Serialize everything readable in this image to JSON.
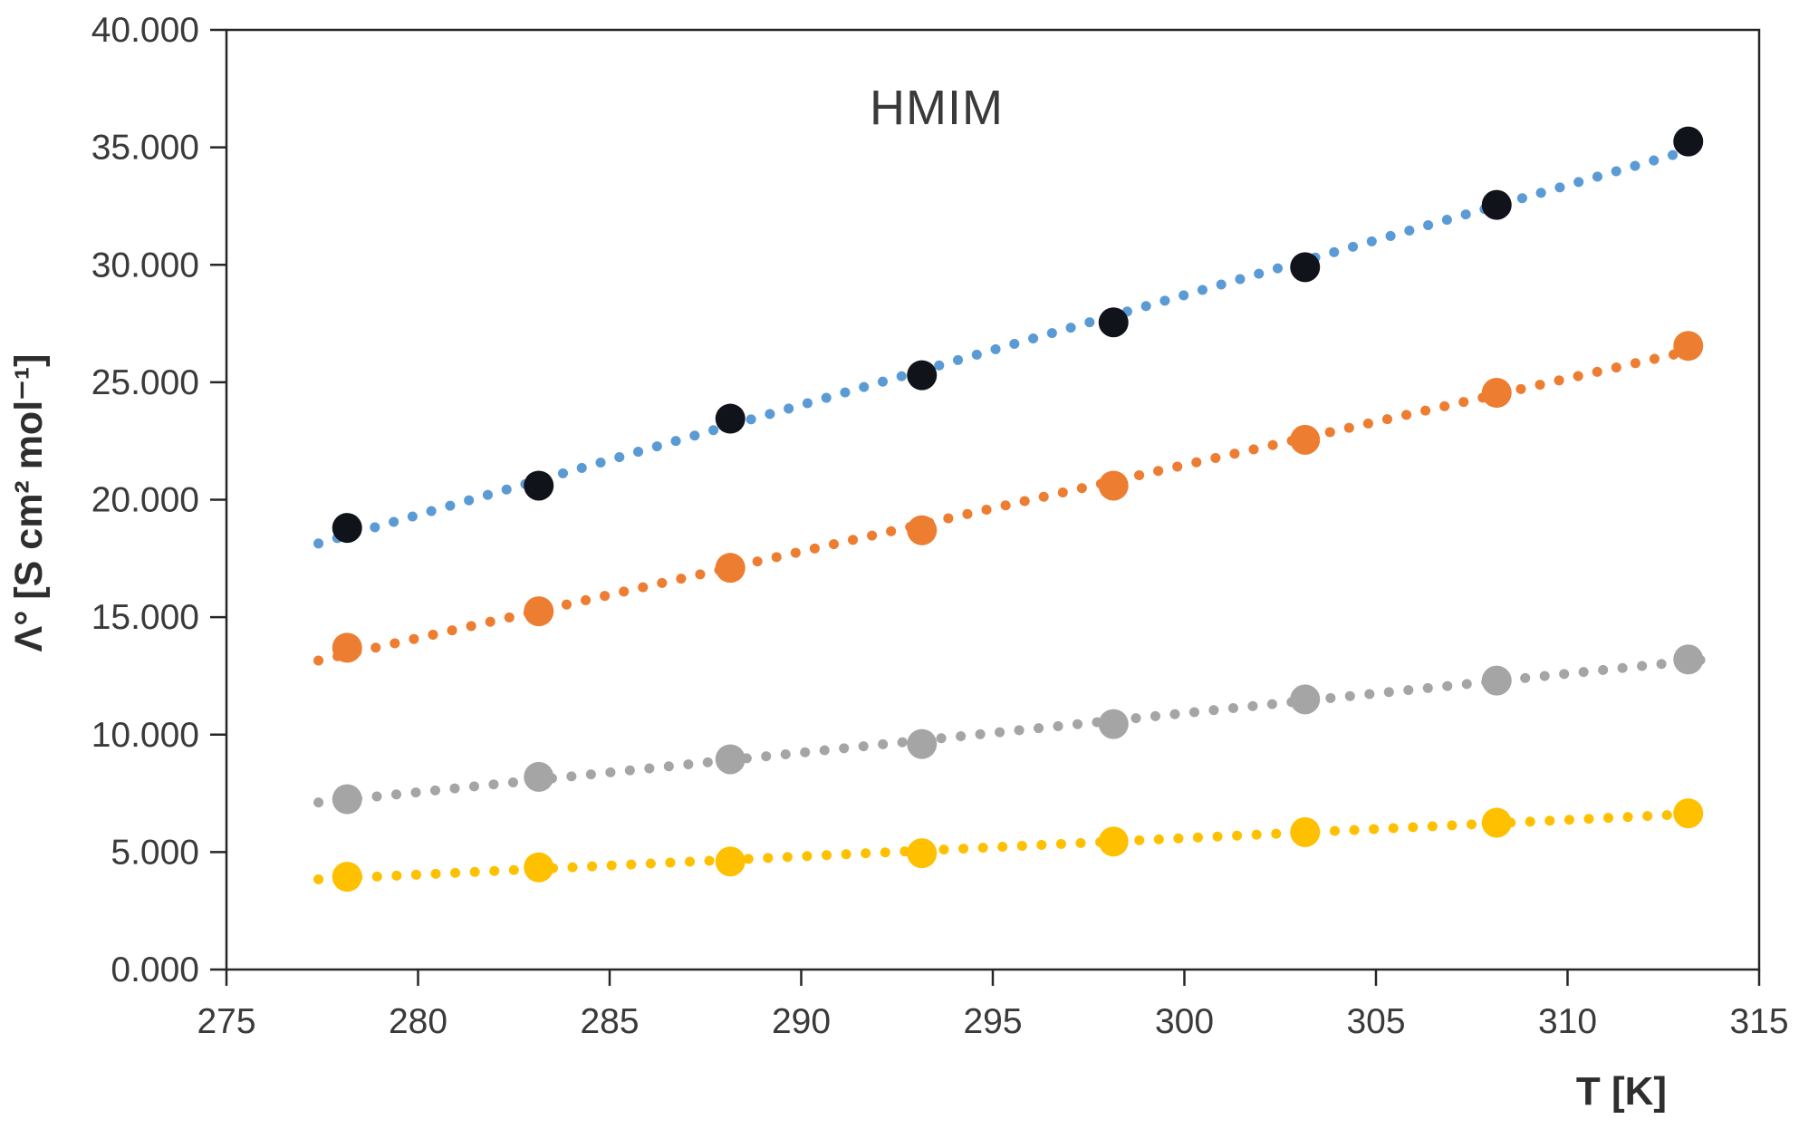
{
  "title": "HMIM",
  "axes": {
    "x_tick_labels": [
      "275",
      "280",
      "285",
      "290",
      "295",
      "300",
      "305",
      "310",
      "315"
    ],
    "y_tick_labels": [
      "0.000",
      "5.000",
      "10.000",
      "15.000",
      "20.000",
      "25.000",
      "30.000",
      "35.000",
      "40.000"
    ]
  },
  "colors": {
    "axis_line": "#262626",
    "tick_text": "#3a3a3a",
    "background": "#ffffff",
    "series_blue_trend": "#5B9BD5",
    "series_black_marker": "#10131a",
    "series_orange": "#ED7D31",
    "series_gray": "#A5A5A5",
    "series_yellow": "#FFC000"
  },
  "chart_data": {
    "type": "scatter",
    "title": "HMIM",
    "xlabel": "T [K]",
    "ylabel": "Λ° [S cm² mol⁻¹]",
    "xlim": [
      275,
      315
    ],
    "ylim": [
      0,
      40000
    ],
    "x_ticks": [
      275,
      280,
      285,
      290,
      295,
      300,
      305,
      310,
      315
    ],
    "y_ticks": [
      0,
      5000,
      10000,
      15000,
      20000,
      25000,
      30000,
      35000,
      40000
    ],
    "grid": false,
    "legend": "none",
    "trendline": "linear-dotted",
    "x": [
      278.15,
      283.15,
      288.15,
      293.15,
      298.15,
      303.15,
      308.15,
      313.15
    ],
    "series": [
      {
        "name": "series-1-black",
        "marker_color": "#10131a",
        "trend_color": "#5B9BD5",
        "values": [
          18800,
          20600,
          23450,
          25300,
          27550,
          29900,
          32550,
          35250
        ]
      },
      {
        "name": "series-2-orange",
        "marker_color": "#ED7D31",
        "trend_color": "#ED7D31",
        "values": [
          13700,
          15250,
          17100,
          18700,
          20600,
          22550,
          24550,
          26550
        ]
      },
      {
        "name": "series-3-gray",
        "marker_color": "#A5A5A5",
        "trend_color": "#A5A5A5",
        "values": [
          7250,
          8200,
          8950,
          9600,
          10450,
          11500,
          12300,
          13200
        ]
      },
      {
        "name": "series-4-yellow",
        "marker_color": "#FFC000",
        "trend_color": "#FFC000",
        "values": [
          3950,
          4350,
          4600,
          4950,
          5450,
          5850,
          6250,
          6650
        ]
      }
    ]
  }
}
